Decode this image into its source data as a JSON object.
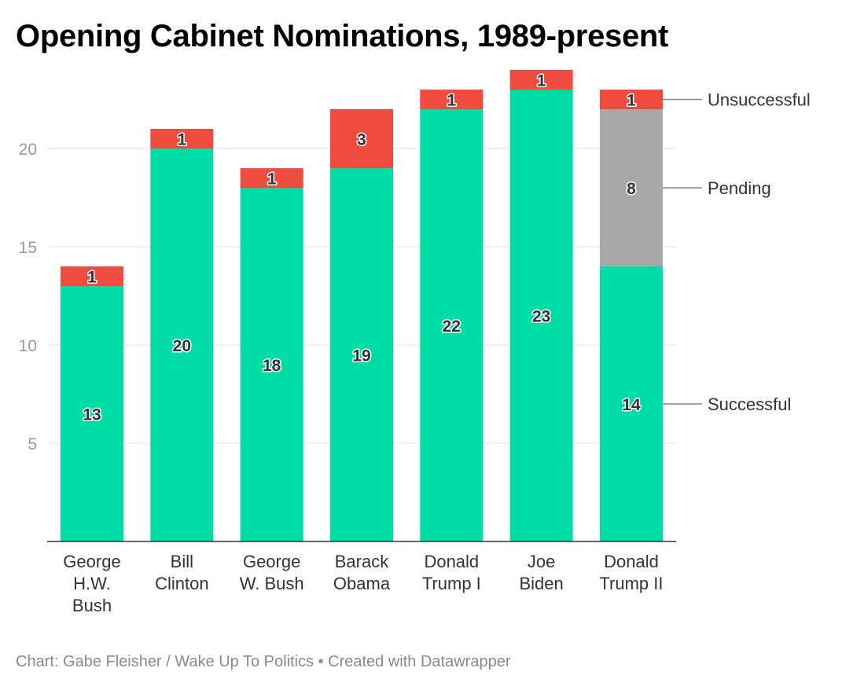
{
  "title": "Opening Cabinet Nominations, 1989-present",
  "footer": "Chart: Gabe Fleisher / Wake Up To Politics • Created with Datawrapper",
  "chart_data": {
    "type": "bar",
    "stacked": true,
    "categories": [
      [
        "George",
        "H.W.",
        "Bush"
      ],
      [
        "Bill",
        "Clinton"
      ],
      [
        "George",
        "W. Bush"
      ],
      [
        "Barack",
        "Obama"
      ],
      [
        "Donald",
        "Trump I"
      ],
      [
        "Joe",
        "Biden"
      ],
      [
        "Donald",
        "Trump II"
      ]
    ],
    "series": [
      {
        "name": "Successful",
        "color": "#00dca6",
        "values": [
          13,
          20,
          18,
          19,
          22,
          23,
          14
        ]
      },
      {
        "name": "Pending",
        "color": "#a8a8a8",
        "values": [
          0,
          0,
          0,
          0,
          0,
          0,
          8
        ]
      },
      {
        "name": "Unsuccessful",
        "color": "#ef4b3f",
        "values": [
          1,
          1,
          1,
          3,
          1,
          1,
          1
        ]
      }
    ],
    "yticks": [
      5,
      10,
      15,
      20
    ],
    "ylim": [
      0,
      24
    ],
    "grid": true,
    "legend_position": "right, labeled at last bar"
  }
}
